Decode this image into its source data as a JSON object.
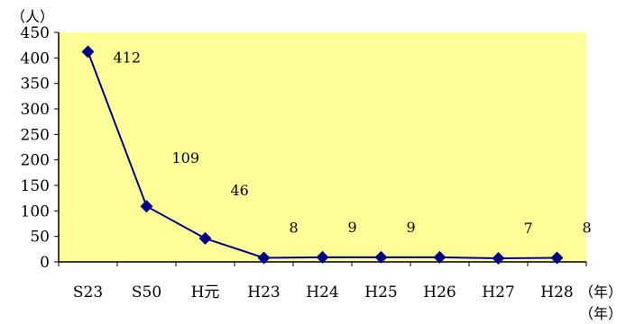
{
  "chart_data": {
    "type": "line",
    "y_unit_label": "（人）",
    "x_unit_label": "（年）",
    "x_unit_label_2": "（年）",
    "categories": [
      "S23",
      "S50",
      "H元",
      "H23",
      "H24",
      "H25",
      "H26",
      "H27",
      "H28"
    ],
    "series": [
      {
        "values": [
          412,
          109,
          46,
          8,
          9,
          9,
          9,
          7,
          8
        ],
        "data_labels": [
          "412",
          "109",
          "46",
          "8",
          "9",
          "9",
          "",
          "7",
          "8"
        ],
        "color": "#000080",
        "marker": "diamond"
      }
    ],
    "ylim": [
      0,
      450
    ],
    "yticks": [
      0,
      50,
      100,
      150,
      200,
      250,
      300,
      350,
      400,
      450
    ],
    "plot_background": "#ffff99",
    "grid": false,
    "legend": "none"
  }
}
